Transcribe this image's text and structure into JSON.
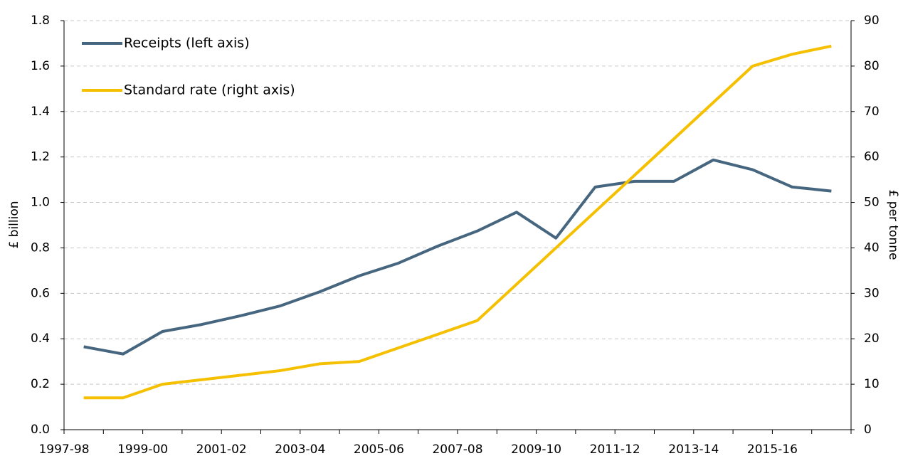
{
  "chart_data": {
    "type": "line",
    "categories": [
      "1997-98",
      null,
      "1999-00",
      null,
      "2001-02",
      null,
      "2003-04",
      null,
      "2005-06",
      null,
      "2007-08",
      null,
      "2009-10",
      null,
      "2011-12",
      null,
      "2013-14",
      null,
      "2015-16",
      null
    ],
    "series": [
      {
        "name": "Receipts (left axis)",
        "color": "#46667f",
        "values": [
          0.365,
          0.333,
          0.432,
          0.463,
          0.502,
          0.545,
          0.607,
          0.677,
          0.733,
          0.808,
          0.874,
          0.957,
          0.843,
          1.068,
          1.093,
          1.093,
          1.187,
          1.144,
          1.068,
          1.05
        ]
      },
      {
        "name": "Standard rate (right axis)",
        "color": "#f5c000",
        "axis": "y2",
        "values": [
          7,
          7,
          10,
          11,
          12,
          13,
          14.5,
          15,
          18,
          21,
          24,
          32,
          40,
          48,
          56,
          64,
          72,
          80,
          82.6,
          84.4
        ]
      }
    ],
    "ylabel": "£ billion",
    "y2label": "£ per tonne",
    "ylim": [
      0,
      1.8
    ],
    "yticks": [
      {
        "value": 0,
        "label": "0.0"
      },
      0.2,
      0.4,
      0.6,
      0.8,
      {
        "value": 1,
        "label": "1.0"
      },
      1.2,
      1.4,
      1.6,
      1.8
    ],
    "y2lim": [
      0,
      90
    ],
    "y2ticks": [
      0,
      10,
      20,
      30,
      40,
      50,
      60,
      70,
      80,
      90
    ],
    "grid": true,
    "legend": "upper-left"
  }
}
